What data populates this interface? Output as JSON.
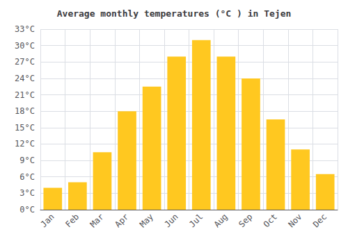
{
  "chart_data": {
    "type": "bar",
    "title": "Average monthly temperatures (°C ) in Tejen",
    "categories": [
      "Jan",
      "Feb",
      "Mar",
      "Apr",
      "May",
      "Jun",
      "Jul",
      "Aug",
      "Sep",
      "Oct",
      "Nov",
      "Dec"
    ],
    "values": [
      4,
      5,
      10.5,
      18,
      22.5,
      28,
      31,
      28,
      24,
      16.5,
      11,
      6.5
    ],
    "color": "#FFC820",
    "ylim": [
      0,
      33
    ],
    "yticks": [
      {
        "value": 0,
        "label": "0°C"
      },
      {
        "value": 3,
        "label": "3°C"
      },
      {
        "value": 6,
        "label": "6°C"
      },
      {
        "value": 9,
        "label": "9°C"
      },
      {
        "value": 12,
        "label": "12°C"
      },
      {
        "value": 15,
        "label": "15°C"
      },
      {
        "value": 18,
        "label": "18°C"
      },
      {
        "value": 21,
        "label": "21°C"
      },
      {
        "value": 24,
        "label": "24°C"
      },
      {
        "value": 27,
        "label": "27°C"
      },
      {
        "value": 30,
        "label": "30°C"
      },
      {
        "value": 33,
        "label": "33°C"
      }
    ],
    "grid": true
  }
}
